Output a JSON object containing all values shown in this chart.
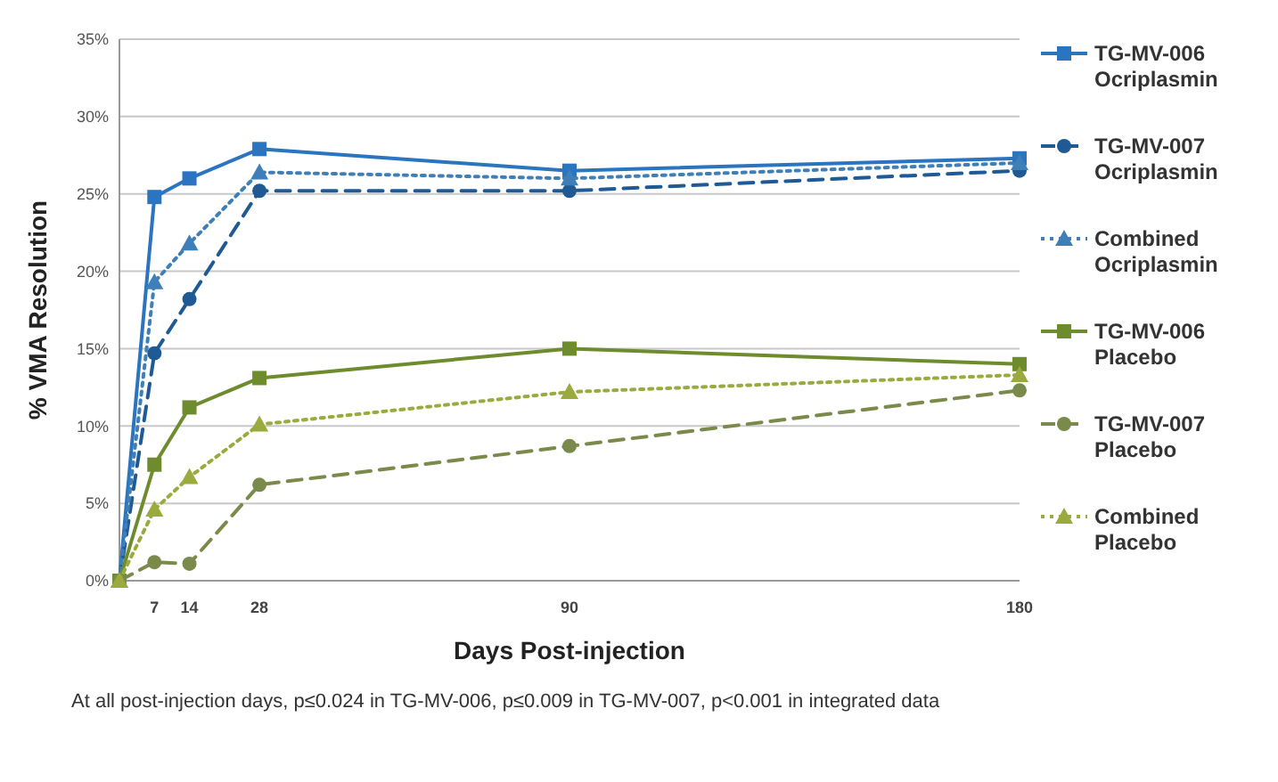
{
  "chart_data": {
    "type": "line",
    "xlabel": "Days Post-injection",
    "ylabel": "% VMA Resolution",
    "x": [
      0,
      7,
      14,
      28,
      90,
      180
    ],
    "xlim": [
      0,
      180
    ],
    "xticks": [
      7,
      14,
      28,
      90,
      180
    ],
    "ylim": [
      0,
      35
    ],
    "yticks": [
      {
        "value": 0,
        "label": "0%"
      },
      {
        "value": 5,
        "label": "5%"
      },
      {
        "value": 10,
        "label": "10%"
      },
      {
        "value": 15,
        "label": "15%"
      },
      {
        "value": 20,
        "label": "20%"
      },
      {
        "value": 25,
        "label": "25%"
      },
      {
        "value": 30,
        "label": "30%"
      },
      {
        "value": 35,
        "label": "35%"
      }
    ],
    "grid": "y",
    "legend": "right",
    "series": [
      {
        "name": "TG-MV-006 Ocriplasmin",
        "color": "#2a74c0",
        "marker": "square",
        "line_style": "solid",
        "values": [
          0,
          24.8,
          26,
          27.9,
          26.5,
          27.3
        ]
      },
      {
        "name": "TG-MV-007 Ocriplasmin",
        "color": "#1f5a94",
        "marker": "circle",
        "line_style": "dashed",
        "values": [
          0,
          14.7,
          18.2,
          25.2,
          25.2,
          26.5
        ]
      },
      {
        "name": "Combined Ocriplasmin",
        "color": "#3f7fb8",
        "marker": "triangle",
        "line_style": "dotted",
        "values": [
          0,
          19.3,
          21.8,
          26.4,
          26,
          27
        ]
      },
      {
        "name": "TG-MV-006 Placebo",
        "color": "#6e8c2e",
        "marker": "square",
        "line_style": "solid",
        "values": [
          0,
          7.5,
          11.2,
          13.1,
          15,
          14
        ]
      },
      {
        "name": "TG-MV-007 Placebo",
        "color": "#7a8a4a",
        "marker": "circle",
        "line_style": "dashed",
        "values": [
          0,
          1.2,
          1.1,
          6.2,
          8.7,
          12.3
        ]
      },
      {
        "name": "Combined Placebo",
        "color": "#9aaa3c",
        "marker": "triangle",
        "line_style": "dotted",
        "values": [
          0,
          4.6,
          6.7,
          10.1,
          12.2,
          13.3
        ]
      }
    ],
    "annotations": [
      "At all post-injection days, p≤0.024 in TG-MV-006, p≤0.009 in TG-MV-007, p<0.001 in integrated data"
    ]
  }
}
